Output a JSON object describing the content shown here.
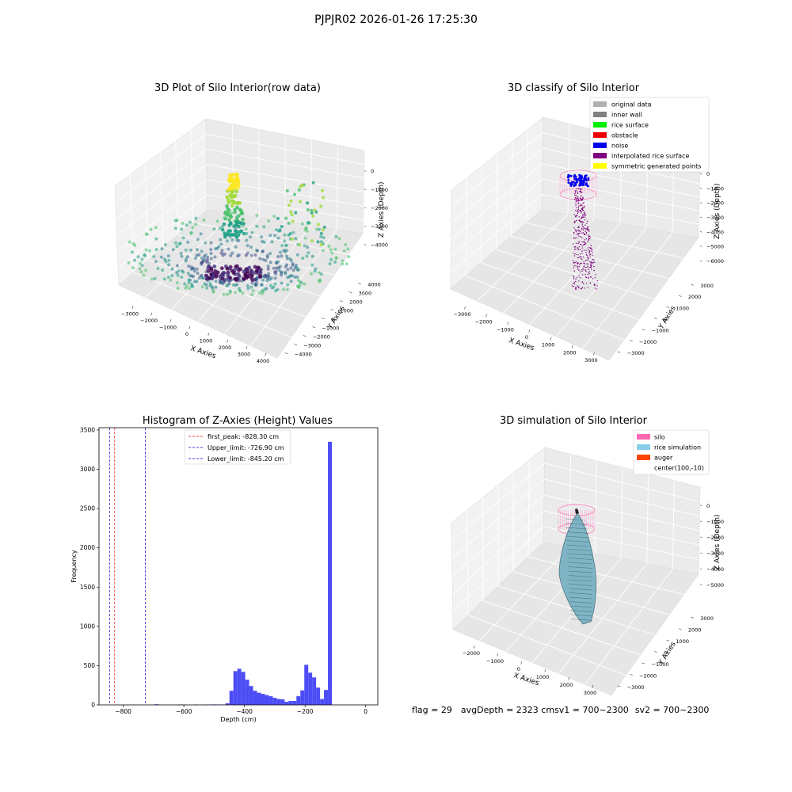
{
  "figure": {
    "suptitle": "PJPJR02 2026-01-26 17:25:30",
    "status": {
      "flag": "flag = 29",
      "avg_depth": "avgDepth = 2323 cm",
      "sv1": "sv1 = 700~2300",
      "sv2": "sv2 = 700~2300"
    }
  },
  "chart_data": [
    {
      "type": "scatter",
      "projection": "3d",
      "title": "3D Plot of Silo Interior(row data)",
      "xlabel": "X Axies",
      "ylabel": "Y Axies",
      "zlabel": "Z Axies (Depth)",
      "x_ticks": [
        "−3000",
        "−2000",
        "−1000",
        "0",
        "1000",
        "2000",
        "3000",
        "4000"
      ],
      "y_ticks": [
        "−4000",
        "−3000",
        "−2000",
        "−1000",
        "0",
        "1000",
        "2000",
        "3000",
        "4000"
      ],
      "z_ticks": [
        "0",
        "−1000",
        "−2000",
        "−3000",
        "−4000"
      ],
      "colormap": "viridis (colored by depth)",
      "grid": true
    },
    {
      "type": "scatter",
      "projection": "3d",
      "title": "3D classify of Silo Interior",
      "xlabel": "X Axies",
      "ylabel": "Y Axies",
      "zlabel": "Z Axies (Depth)",
      "x_ticks": [
        "−3000",
        "−2000",
        "−1000",
        "0",
        "1000",
        "2000",
        "3000"
      ],
      "y_ticks": [
        "−3000",
        "−2000",
        "−1000",
        "0",
        "1000",
        "2000",
        "3000"
      ],
      "z_ticks": [
        "0",
        "−1000",
        "−2000",
        "−3000",
        "−4000",
        "−5000",
        "−6000"
      ],
      "legend_position": "top-right",
      "legend": [
        {
          "label": "original data",
          "color": "#b0b0b0"
        },
        {
          "label": "inner wall",
          "color": "#808080"
        },
        {
          "label": "rice surface",
          "color": "#00ee00"
        },
        {
          "label": "obstacle",
          "color": "#ee0000"
        },
        {
          "label": "noise",
          "color": "#0000ee"
        },
        {
          "label": "interpolated rice surface",
          "color": "#800080"
        },
        {
          "label": "symmetric generated points",
          "color": "#ffff00"
        }
      ],
      "grid": true
    },
    {
      "type": "bar",
      "title": "Histogram of Z-Axies (Height) Values",
      "xlabel": "Depth (cm)",
      "ylabel": "Frequency",
      "xlim": [
        -880,
        40
      ],
      "ylim": [
        0,
        3530
      ],
      "x_ticks": [
        -800,
        -600,
        -400,
        -200,
        0
      ],
      "y_ticks": [
        0,
        500,
        1000,
        1500,
        2000,
        2500,
        3000,
        3500
      ],
      "bin_width": 13,
      "bar_color": "#4d4df5",
      "bins": [
        {
          "x": -690,
          "y": 8
        },
        {
          "x": -612,
          "y": 5
        },
        {
          "x": -599,
          "y": 3
        },
        {
          "x": -560,
          "y": 4
        },
        {
          "x": -521,
          "y": 4
        },
        {
          "x": -508,
          "y": 5
        },
        {
          "x": -495,
          "y": 6
        },
        {
          "x": -482,
          "y": 5
        },
        {
          "x": -469,
          "y": 5
        },
        {
          "x": -456,
          "y": 20
        },
        {
          "x": -443,
          "y": 180
        },
        {
          "x": -430,
          "y": 430
        },
        {
          "x": -417,
          "y": 460
        },
        {
          "x": -404,
          "y": 420
        },
        {
          "x": -391,
          "y": 320
        },
        {
          "x": -378,
          "y": 240
        },
        {
          "x": -365,
          "y": 180
        },
        {
          "x": -352,
          "y": 155
        },
        {
          "x": -339,
          "y": 140
        },
        {
          "x": -326,
          "y": 125
        },
        {
          "x": -313,
          "y": 110
        },
        {
          "x": -300,
          "y": 90
        },
        {
          "x": -287,
          "y": 75
        },
        {
          "x": -274,
          "y": 70
        },
        {
          "x": -261,
          "y": 40
        },
        {
          "x": -248,
          "y": 50
        },
        {
          "x": -235,
          "y": 50
        },
        {
          "x": -222,
          "y": 110
        },
        {
          "x": -209,
          "y": 185
        },
        {
          "x": -196,
          "y": 510
        },
        {
          "x": -183,
          "y": 410
        },
        {
          "x": -170,
          "y": 350
        },
        {
          "x": -157,
          "y": 220
        },
        {
          "x": -144,
          "y": 75
        },
        {
          "x": -131,
          "y": 190
        },
        {
          "x": -118,
          "y": 3350
        }
      ],
      "lines": [
        {
          "label": "first_peak: -828.30 cm",
          "x": -828.3,
          "color": "#ff0000"
        },
        {
          "label": "Upper_limit: -726.90 cm",
          "x": -726.9,
          "color": "#0000cc"
        },
        {
          "label": "Lower_limit: -845.20 cm",
          "x": -845.2,
          "color": "#0000cc"
        }
      ],
      "legend_position": "upper center"
    },
    {
      "type": "surface",
      "projection": "3d",
      "title": "3D simulation of Silo Interior",
      "xlabel": "X Axies",
      "ylabel": "Y Axies",
      "zlabel": "Z Axies (Depth)",
      "x_ticks": [
        "−2000",
        "−1000",
        "0",
        "1000",
        "2000",
        "3000"
      ],
      "y_ticks": [
        "−3000",
        "−2000",
        "−1000",
        "0",
        "1000",
        "2000",
        "3000"
      ],
      "z_ticks": [
        "0",
        "−1000",
        "−2000",
        "−3000",
        "−4000",
        "−5000"
      ],
      "legend_position": "top-right",
      "legend": [
        {
          "label": "silo",
          "color": "#ff69b4"
        },
        {
          "label": "rice simulation",
          "color": "#87ceeb"
        },
        {
          "label": "auger",
          "color": "#ff4500"
        },
        {
          "label": "center(100,-10)",
          "color": ""
        }
      ],
      "grid": true
    }
  ]
}
